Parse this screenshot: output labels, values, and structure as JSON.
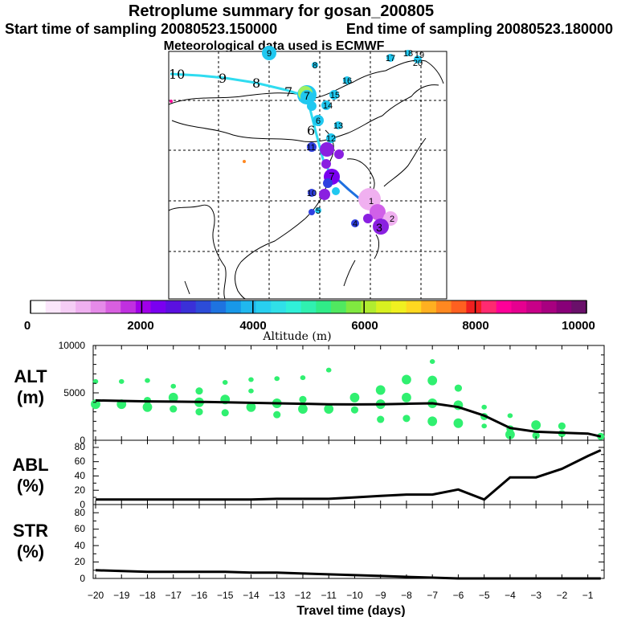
{
  "header": {
    "title": "Retroplume summary for gosan_200805",
    "start_label": "Start time of sampling 20080523.150000",
    "end_label": "End time of sampling 20080523.180000",
    "met_label": "Meteorological data used is ECMWF"
  },
  "colorbar": {
    "ticks": [
      "0",
      "2000",
      "4000",
      "6000",
      "8000",
      "10000"
    ],
    "title": "Altitude (m)",
    "colors": [
      "#ffffff",
      "#fbe6fb",
      "#f5cdf5",
      "#efb0f0",
      "#e58ae8",
      "#d85fe0",
      "#c030e0",
      "#a000e8",
      "#7a00f0",
      "#5a10e0",
      "#3a30d8",
      "#2c4cd8",
      "#1e73e0",
      "#1898e8",
      "#20b8ee",
      "#28d0f0",
      "#30e0e8",
      "#30f0d8",
      "#30f0b0",
      "#30ec88",
      "#50e860",
      "#80e840",
      "#b0ec30",
      "#d8f020",
      "#f0f020",
      "#ffd820",
      "#ffb020",
      "#ff8820",
      "#ff6020",
      "#f02020",
      "#ff2a70",
      "#ff0098",
      "#e60090",
      "#c80088",
      "#a80080",
      "#880078",
      "#6a106a"
    ]
  },
  "map": {
    "trajectory_labels": [
      "10",
      "9",
      "8",
      "7",
      "6"
    ],
    "plume_labels": [
      "9",
      "8",
      "16",
      "17",
      "18",
      "19",
      "20",
      "15",
      "14",
      "13",
      "12",
      "11",
      "6",
      "7",
      "10",
      "5",
      "4",
      "3",
      "1",
      "2",
      "7"
    ],
    "colors": {
      "upper_track": "#30dcf0",
      "lower_track": "#1e70e0",
      "cyan": "#20c8f0",
      "purple": "#8a20e0",
      "blue": "#3040e0",
      "pink": "#f0b0f0"
    }
  },
  "panels": {
    "alt": {
      "label_top": "ALT",
      "label_bottom": "(m)",
      "yticks": [
        "0",
        "5000",
        "10000"
      ]
    },
    "abl": {
      "label_top": "ABL",
      "label_bottom": "(%)",
      "yticks": [
        "0",
        "20",
        "40",
        "60",
        "80"
      ]
    },
    "str": {
      "label_top": "STR",
      "label_bottom": "(%)",
      "yticks": [
        "0",
        "20",
        "40",
        "60",
        "80"
      ]
    }
  },
  "xaxis": {
    "ticks": [
      "−20",
      "−19",
      "−18",
      "−17",
      "−16",
      "−15",
      "−14",
      "−13",
      "−12",
      "−11",
      "−10",
      "−9",
      "−8",
      "−7",
      "−6",
      "−5",
      "−4",
      "−3",
      "−2",
      "−1"
    ],
    "label": "Travel time (days)"
  },
  "chart_data": [
    {
      "type": "line",
      "name": "ALT",
      "title": "ALT (m)",
      "xlabel": "Travel time (days)",
      "ylabel": "Altitude (m)",
      "xlim": [
        -20,
        -0.4
      ],
      "ylim": [
        0,
        10000
      ],
      "x": [
        -20,
        -19,
        -18,
        -17,
        -16,
        -15,
        -14,
        -13,
        -12,
        -11,
        -10,
        -9,
        -8,
        -7,
        -6,
        -5,
        -4,
        -3,
        -2,
        -1,
        -0.5
      ],
      "values": [
        4200,
        4150,
        4100,
        4080,
        4050,
        4000,
        3950,
        3900,
        3850,
        3800,
        3780,
        3790,
        3850,
        3900,
        3500,
        2600,
        1300,
        900,
        800,
        700,
        400
      ],
      "scatter_color": "#30f070",
      "scatter": [
        {
          "x": -20,
          "y": 3800,
          "size": 3
        },
        {
          "x": -20,
          "y": 6200,
          "size": 1
        },
        {
          "x": -19,
          "y": 3800,
          "size": 3
        },
        {
          "x": -19,
          "y": 6200,
          "size": 1
        },
        {
          "x": -18,
          "y": 3500,
          "size": 3
        },
        {
          "x": -18,
          "y": 4200,
          "size": 2
        },
        {
          "x": -18,
          "y": 6300,
          "size": 1
        },
        {
          "x": -17,
          "y": 3300,
          "size": 2
        },
        {
          "x": -17,
          "y": 4500,
          "size": 3
        },
        {
          "x": -17,
          "y": 5700,
          "size": 1
        },
        {
          "x": -16,
          "y": 3000,
          "size": 2
        },
        {
          "x": -16,
          "y": 4000,
          "size": 3
        },
        {
          "x": -16,
          "y": 5200,
          "size": 2
        },
        {
          "x": -15,
          "y": 2900,
          "size": 2
        },
        {
          "x": -15,
          "y": 4300,
          "size": 3
        },
        {
          "x": -15,
          "y": 6100,
          "size": 1
        },
        {
          "x": -14,
          "y": 3500,
          "size": 3
        },
        {
          "x": -14,
          "y": 5200,
          "size": 1
        },
        {
          "x": -14,
          "y": 6400,
          "size": 1
        },
        {
          "x": -13,
          "y": 2700,
          "size": 2
        },
        {
          "x": -13,
          "y": 3900,
          "size": 3
        },
        {
          "x": -13,
          "y": 6500,
          "size": 1
        },
        {
          "x": -12,
          "y": 3300,
          "size": 3
        },
        {
          "x": -12,
          "y": 4300,
          "size": 2
        },
        {
          "x": -12,
          "y": 6600,
          "size": 1
        },
        {
          "x": -11,
          "y": 3300,
          "size": 3
        },
        {
          "x": -11,
          "y": 7400,
          "size": 1
        },
        {
          "x": -10,
          "y": 3200,
          "size": 2
        },
        {
          "x": -10,
          "y": 4500,
          "size": 3
        },
        {
          "x": -9,
          "y": 2200,
          "size": 2
        },
        {
          "x": -9,
          "y": 3800,
          "size": 3
        },
        {
          "x": -9,
          "y": 5300,
          "size": 3
        },
        {
          "x": -8,
          "y": 2300,
          "size": 2
        },
        {
          "x": -8,
          "y": 4500,
          "size": 3
        },
        {
          "x": -8,
          "y": 6400,
          "size": 3
        },
        {
          "x": -7,
          "y": 2000,
          "size": 3
        },
        {
          "x": -7,
          "y": 3900,
          "size": 3
        },
        {
          "x": -7,
          "y": 6300,
          "size": 3
        },
        {
          "x": -7,
          "y": 8300,
          "size": 1
        },
        {
          "x": -6,
          "y": 1800,
          "size": 3
        },
        {
          "x": -6,
          "y": 3700,
          "size": 3
        },
        {
          "x": -6,
          "y": 5500,
          "size": 2
        },
        {
          "x": -5,
          "y": 1500,
          "size": 1
        },
        {
          "x": -5,
          "y": 2500,
          "size": 2
        },
        {
          "x": -5,
          "y": 3500,
          "size": 1
        },
        {
          "x": -4,
          "y": 600,
          "size": 3
        },
        {
          "x": -4,
          "y": 1200,
          "size": 2
        },
        {
          "x": -4,
          "y": 2600,
          "size": 1
        },
        {
          "x": -3,
          "y": 500,
          "size": 2
        },
        {
          "x": -3,
          "y": 1600,
          "size": 3
        },
        {
          "x": -2,
          "y": 700,
          "size": 2
        },
        {
          "x": -2,
          "y": 1500,
          "size": 2
        },
        {
          "x": -0.5,
          "y": 400,
          "size": 2
        }
      ]
    },
    {
      "type": "line",
      "name": "ABL",
      "title": "ABL (%)",
      "xlabel": "Travel time (days)",
      "ylabel": "ABL (%)",
      "xlim": [
        -20,
        -0.4
      ],
      "ylim": [
        0,
        90
      ],
      "x": [
        -20,
        -19,
        -18,
        -17,
        -16,
        -15,
        -14,
        -13,
        -12,
        -11,
        -10,
        -9,
        -8,
        -7,
        -6,
        -5,
        -4,
        -3,
        -2,
        -1,
        -0.5
      ],
      "values": [
        7,
        7,
        7,
        7,
        7,
        7,
        7,
        8,
        8,
        8,
        10,
        12,
        14,
        14,
        21,
        7,
        38,
        38,
        50,
        68,
        76
      ]
    },
    {
      "type": "line",
      "name": "STR",
      "title": "STR (%)",
      "xlabel": "Travel time (days)",
      "ylabel": "STR (%)",
      "xlim": [
        -20,
        -0.4
      ],
      "ylim": [
        0,
        90
      ],
      "x": [
        -20,
        -19,
        -18,
        -17,
        -16,
        -15,
        -14,
        -13,
        -12,
        -11,
        -10,
        -9,
        -8,
        -7,
        -6,
        -5,
        -4,
        -3,
        -2,
        -1,
        -0.5
      ],
      "values": [
        10,
        9,
        8,
        8,
        8,
        8,
        7,
        7,
        6,
        5,
        4,
        3,
        2,
        1,
        0,
        0,
        0,
        0,
        0,
        0,
        0
      ]
    }
  ]
}
